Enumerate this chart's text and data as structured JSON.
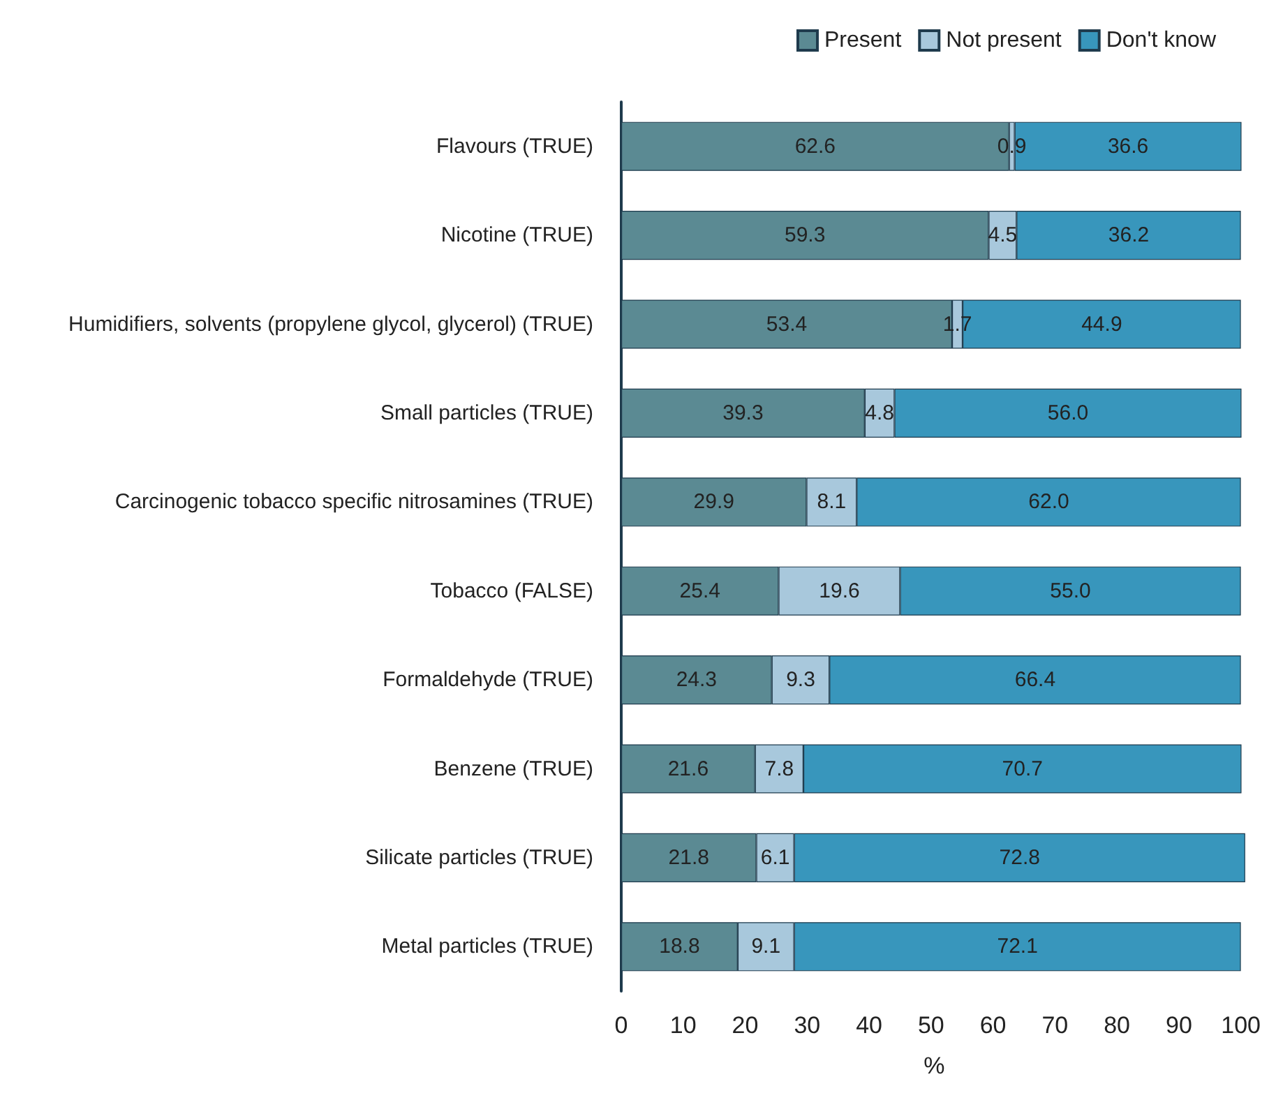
{
  "chart_data": {
    "type": "bar",
    "orientation": "horizontal",
    "stacked": true,
    "xlabel": "%",
    "legend": "top right",
    "grid": false,
    "xlim": [
      0,
      101
    ],
    "xticks": [
      0,
      10,
      20,
      30,
      40,
      50,
      60,
      70,
      80,
      90,
      100
    ],
    "categories": [
      "Flavours (TRUE)",
      "Nicotine (TRUE)",
      "Humidifiers, solvents (propylene glycol, glycerol) (TRUE)",
      "Small particles (TRUE)",
      "Carcinogenic tobacco specific nitrosamines (TRUE)",
      "Tobacco (FALSE)",
      "Formaldehyde (TRUE)",
      "Benzene (TRUE)",
      "Silicate particles (TRUE)",
      "Metal particles (TRUE)"
    ],
    "series": [
      {
        "name": "Present",
        "color": "#5b8a93",
        "values": [
          62.6,
          59.3,
          53.4,
          39.3,
          29.9,
          25.4,
          24.3,
          21.6,
          21.8,
          18.8
        ],
        "value_labels": [
          "62.6",
          "59.3",
          "53.4",
          "39.3",
          "29.9",
          "25.4",
          "24.3",
          "21.6",
          "21.8",
          "18.8"
        ]
      },
      {
        "name": "Not present",
        "color": "#a8c8dc",
        "values": [
          0.9,
          4.5,
          1.7,
          4.8,
          8.1,
          19.6,
          9.3,
          7.8,
          6.1,
          9.1
        ],
        "value_labels": [
          "0.9",
          "4.5",
          "1.7",
          "4.8",
          "8.1",
          "19.6",
          "9.3",
          "7.8",
          "6.1",
          "9.1"
        ]
      },
      {
        "name": "Don't know",
        "color": "#3896bc",
        "values": [
          36.6,
          36.2,
          44.9,
          56.0,
          62.0,
          55.0,
          66.4,
          70.7,
          72.8,
          72.1
        ],
        "value_labels": [
          "36.6",
          "36.2",
          "44.9",
          "56.0",
          "62.0",
          "55.0",
          "66.4",
          "70.7",
          "72.8",
          "72.1"
        ]
      }
    ]
  }
}
